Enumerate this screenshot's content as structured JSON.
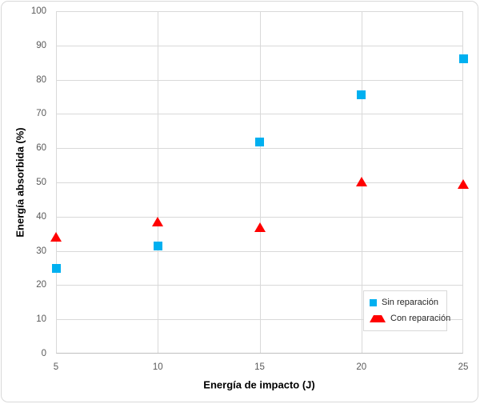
{
  "chart_data": {
    "type": "scatter",
    "title": "",
    "xlabel": "Energía de impacto (J)",
    "ylabel": "Energía absorbida (%)",
    "xlim": [
      5,
      25
    ],
    "ylim": [
      0,
      100
    ],
    "xticks": [
      5,
      10,
      15,
      20,
      25
    ],
    "yticks": [
      0,
      10,
      20,
      30,
      40,
      50,
      60,
      70,
      80,
      90,
      100
    ],
    "grid": true,
    "legend_position": "inside-bottom-right",
    "series": [
      {
        "name": "Sin reparación",
        "marker": "square",
        "color": "#00B0F0",
        "points": [
          {
            "x": 5,
            "y": 25.0
          },
          {
            "x": 10,
            "y": 31.5
          },
          {
            "x": 15,
            "y": 61.8
          },
          {
            "x": 20,
            "y": 75.5
          },
          {
            "x": 25,
            "y": 86.0
          }
        ]
      },
      {
        "name": "Con reparación",
        "marker": "triangle",
        "color": "#FF0000",
        "points": [
          {
            "x": 5,
            "y": 34.0
          },
          {
            "x": 10,
            "y": 38.5
          },
          {
            "x": 15,
            "y": 37.0
          },
          {
            "x": 20,
            "y": 50.2
          },
          {
            "x": 25,
            "y": 49.6
          }
        ]
      }
    ],
    "colors": {
      "background": "#FFFFFF",
      "chart_border": "#D9D9D9",
      "gridline": "#D9D9D9",
      "axis_line": "#BFBFBF",
      "tick_label": "#595959",
      "axis_title": "#000000",
      "legend_text": "#262626"
    }
  }
}
